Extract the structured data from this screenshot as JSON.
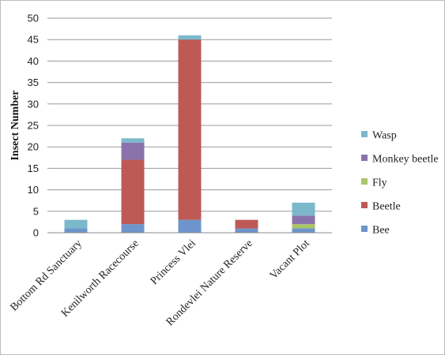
{
  "colors": {
    "Bee": "#6d95cc",
    "Beetle": "#be5a56",
    "Fly": "#a9c56b",
    "Monkey beetle": "#8a73ad",
    "Wasp": "#7cb8cc"
  },
  "chart_data": {
    "type": "bar",
    "stacked": true,
    "categories": [
      "Bottom Rd Sanctuary",
      "Kenilworth Racecourse",
      "Princess Vlei",
      "Rondevlei Nature Reserve",
      "Vacant Plot"
    ],
    "series": [
      {
        "name": "Bee",
        "values": [
          1,
          2,
          3,
          1,
          1
        ]
      },
      {
        "name": "Beetle",
        "values": [
          0,
          15,
          42,
          2,
          0
        ]
      },
      {
        "name": "Fly",
        "values": [
          0,
          0,
          0,
          0,
          1
        ]
      },
      {
        "name": "Monkey beetle",
        "values": [
          0,
          4,
          0,
          0,
          2
        ]
      },
      {
        "name": "Wasp",
        "values": [
          2,
          1,
          1,
          0,
          3
        ]
      }
    ],
    "ylabel": "Insect Number",
    "xlabel": "",
    "title": "",
    "ylim": [
      0,
      50
    ],
    "yticks": [
      0,
      5,
      10,
      15,
      20,
      25,
      30,
      35,
      40,
      45,
      50
    ],
    "grid": true,
    "legend_position": "right",
    "legend_order": [
      "Wasp",
      "Monkey beetle",
      "Fly",
      "Beetle",
      "Bee"
    ]
  }
}
